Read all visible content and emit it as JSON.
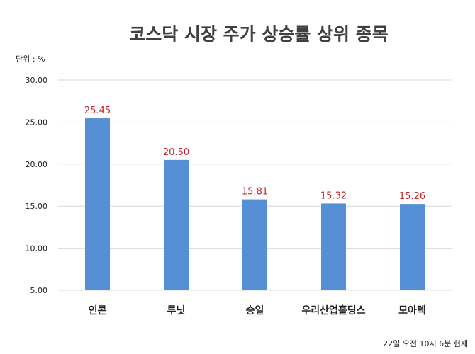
{
  "chart_data": {
    "type": "bar",
    "title": "코스닥 시장 주가 상승률 상위 종목",
    "unit_label": "단위 : %",
    "footnote": "22일  오전  10시  6분  현재",
    "categories": [
      "인콘",
      "루닛",
      "승일",
      "우리산업홀딩스",
      "모아텍"
    ],
    "values": [
      25.45,
      20.5,
      15.81,
      15.32,
      15.26
    ],
    "value_labels": [
      "25.45",
      "20.50",
      "15.81",
      "15.32",
      "15.26"
    ],
    "yticks": [
      "5.00",
      "10.00",
      "15.00",
      "20.00",
      "25.00",
      "30.00"
    ],
    "ylim": [
      5,
      30
    ],
    "grid": true,
    "colors": {
      "bar": "#5590d6",
      "value_label": "#c0282d",
      "grid": "#d9d9d9",
      "text": "#222222"
    }
  }
}
